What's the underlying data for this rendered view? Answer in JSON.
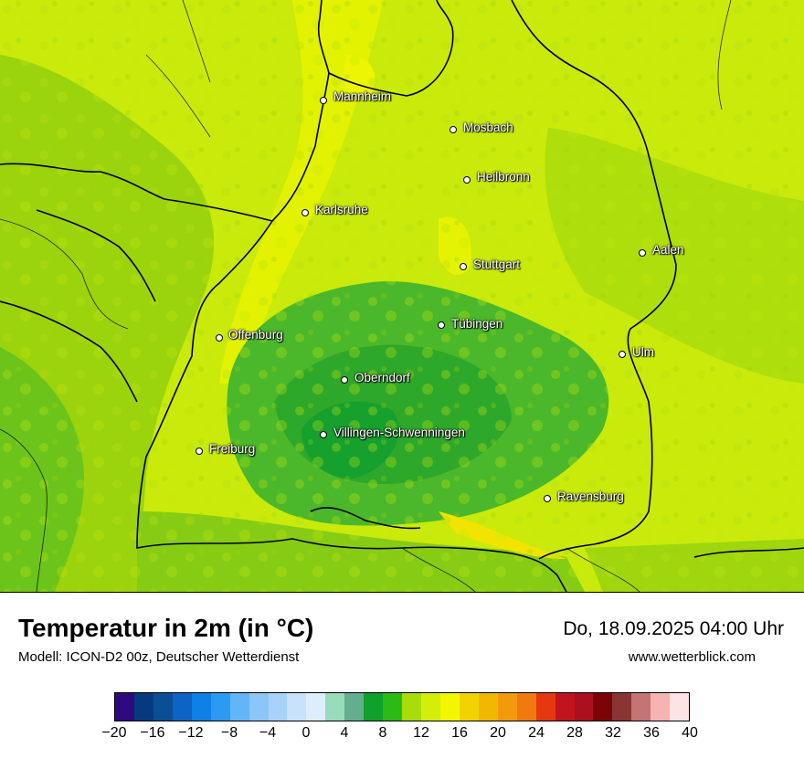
{
  "map": {
    "cities": [
      {
        "name": "Mannheim"
      },
      {
        "name": "Mosbach"
      },
      {
        "name": "Heilbronn"
      },
      {
        "name": "Karlsruhe"
      },
      {
        "name": "Aalen"
      },
      {
        "name": "Stuttgart"
      },
      {
        "name": "Tübingen"
      },
      {
        "name": "Offenburg"
      },
      {
        "name": "Ulm"
      },
      {
        "name": "Oberndorf"
      },
      {
        "name": "Villingen-Schwenningen"
      },
      {
        "name": "Freiburg"
      },
      {
        "name": "Ravensburg"
      }
    ]
  },
  "footer": {
    "title": "Temperatur in 2m (in °C)",
    "model": "Modell: ICON-D2 00z, Deutscher Wetterdienst",
    "datetime": "Do, 18.09.2025 04:00 Uhr",
    "website": "www.wetterblick.com"
  },
  "legend": {
    "colors": [
      "#2e0a7e",
      "#063a80",
      "#0a4f96",
      "#0f63c4",
      "#0f80e6",
      "#2c9af0",
      "#62b5f7",
      "#8ac6f8",
      "#a8d2fa",
      "#c8e2fb",
      "#dceefc",
      "#98dcbb",
      "#63ae8c",
      "#0fa02e",
      "#2bbb15",
      "#a8dc0a",
      "#d4ee0a",
      "#f2f700",
      "#f2d300",
      "#f2b800",
      "#f29a0b",
      "#f07a10",
      "#e6380e",
      "#c0141e",
      "#aa101e",
      "#7c0407",
      "#8b3434",
      "#c47474",
      "#f7b2b2",
      "#fde3e3"
    ],
    "ticks": [
      "−20",
      "−16",
      "−12",
      "−8",
      "−4",
      "0",
      "4",
      "8",
      "12",
      "16",
      "20",
      "24",
      "28",
      "32",
      "36",
      "40"
    ]
  }
}
